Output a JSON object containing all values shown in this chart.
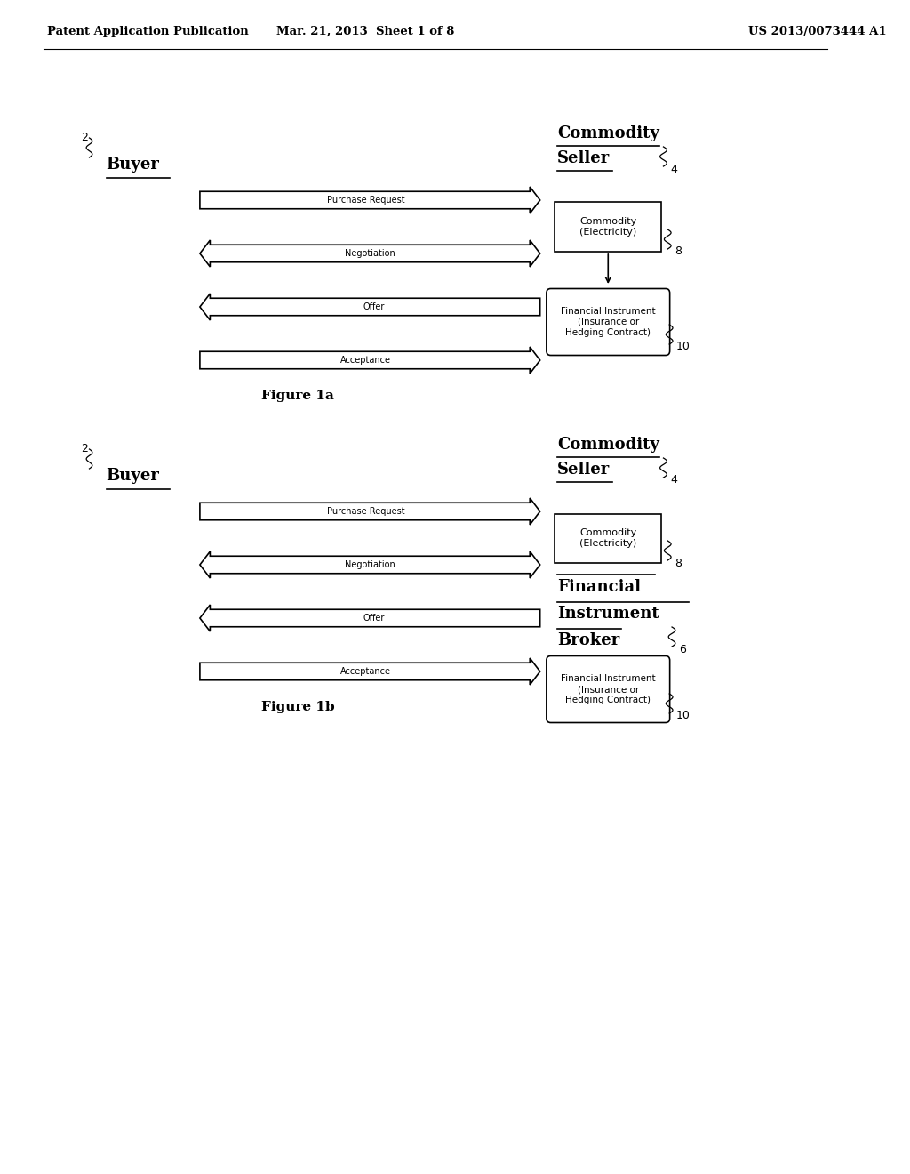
{
  "bg_color": "#ffffff",
  "header_left": "Patent Application Publication",
  "header_mid": "Mar. 21, 2013  Sheet 1 of 8",
  "header_right": "US 2013/0073444 A1",
  "fig1a": {
    "title": "Figure 1a",
    "buyer_label": "Buyer",
    "buyer_num": "2",
    "seller_label_line1": "Commodity",
    "seller_label_line2": "Seller",
    "seller_num": "4",
    "arrows": [
      {
        "label": "Purchase Request",
        "direction": "right"
      },
      {
        "label": "Negotiation",
        "direction": "both"
      },
      {
        "label": "Offer",
        "direction": "left"
      },
      {
        "label": "Acceptance",
        "direction": "right"
      }
    ],
    "box1_label": "Commodity\n(Electricity)",
    "box1_num": "8",
    "box2_label": "Financial Instrument\n(Insurance or\nHedging Contract)",
    "box2_num": "10"
  },
  "fig1b": {
    "title": "Figure 1b",
    "buyer_label": "Buyer",
    "buyer_num": "2",
    "seller_label_line1": "Commodity",
    "seller_label_line2": "Seller",
    "seller_num": "4",
    "broker_label_line1": "Financial",
    "broker_label_line2": "Instrument",
    "broker_label_line3": "Broker",
    "broker_num": "6",
    "arrows": [
      {
        "label": "Purchase Request",
        "direction": "right"
      },
      {
        "label": "Negotiation",
        "direction": "both"
      },
      {
        "label": "Offer",
        "direction": "left"
      },
      {
        "label": "Acceptance",
        "direction": "right"
      }
    ],
    "box1_label": "Commodity\n(Electricity)",
    "box1_num": "8",
    "box2_label": "Financial Instrument\n(Insurance or\nHedging Contract)",
    "box2_num": "10"
  }
}
